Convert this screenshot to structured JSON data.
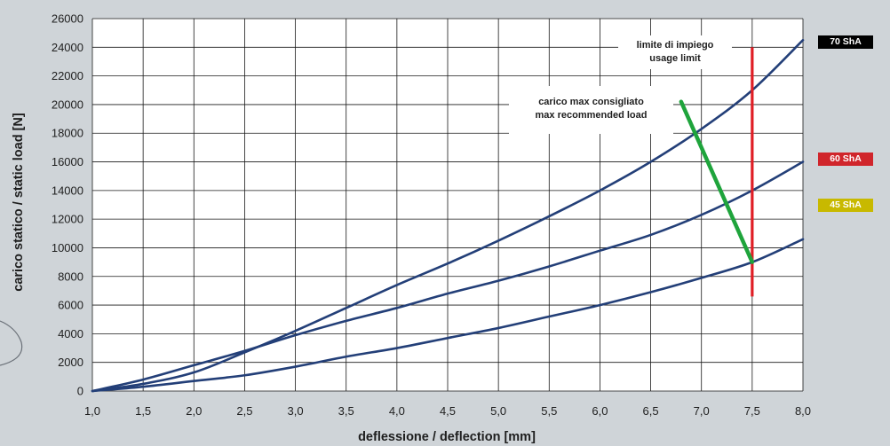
{
  "chart_data": {
    "type": "line",
    "xlabel": "deflessione / deflection [mm]",
    "ylabel": "carico statico / static load [N]",
    "xlim": [
      1.0,
      8.0
    ],
    "ylim": [
      0,
      26000
    ],
    "x_ticks": [
      "1,0",
      "1,5",
      "2,0",
      "2,5",
      "3,0",
      "3,5",
      "4,0",
      "4,5",
      "5,0",
      "5,5",
      "6,0",
      "6,5",
      "7,0",
      "7,5",
      "8,0"
    ],
    "y_ticks": [
      "0",
      "2000",
      "4000",
      "6000",
      "8000",
      "10000",
      "12000",
      "14000",
      "16000",
      "18000",
      "20000",
      "22000",
      "24000",
      "26000"
    ],
    "grid": true,
    "series": [
      {
        "name": "70 ShA",
        "color": "#233f78",
        "x": [
          1.0,
          1.5,
          2.0,
          2.5,
          3.0,
          3.5,
          4.0,
          4.5,
          5.0,
          5.5,
          6.0,
          6.5,
          7.0,
          7.5,
          8.0
        ],
        "y": [
          0,
          500,
          1300,
          2700,
          4200,
          5800,
          7400,
          8900,
          10500,
          12200,
          14000,
          16000,
          18300,
          21000,
          24500
        ]
      },
      {
        "name": "60 ShA",
        "color": "#233f78",
        "x": [
          1.0,
          1.5,
          2.0,
          2.5,
          3.0,
          3.5,
          4.0,
          4.5,
          5.0,
          5.5,
          6.0,
          6.5,
          7.0,
          7.5,
          8.0
        ],
        "y": [
          0,
          800,
          1800,
          2800,
          3900,
          4900,
          5800,
          6800,
          7700,
          8700,
          9800,
          10900,
          12300,
          14000,
          16000
        ]
      },
      {
        "name": "45 ShA",
        "color": "#233f78",
        "x": [
          1.0,
          1.5,
          2.0,
          2.5,
          3.0,
          3.5,
          4.0,
          4.5,
          5.0,
          5.5,
          6.0,
          6.5,
          7.0,
          7.5,
          8.0
        ],
        "y": [
          0,
          300,
          700,
          1100,
          1700,
          2400,
          3000,
          3700,
          4400,
          5200,
          6000,
          6900,
          7900,
          9000,
          10600
        ]
      }
    ],
    "legend": [
      {
        "label": "70 ShA",
        "color": "#000000"
      },
      {
        "label": "60 ShA",
        "color": "#d0252b"
      },
      {
        "label": "45 ShA",
        "color": "#c8b900"
      }
    ],
    "annotations": [
      {
        "id": "usage-limit",
        "lines": [
          "limite di impiego",
          "usage limit"
        ],
        "color": "#e01e25",
        "x": 7.5,
        "y_range": [
          6600,
          24000
        ]
      },
      {
        "id": "max-recommended",
        "lines": [
          "carico max consigliato",
          "max recommended load"
        ],
        "color": "#1fa43c",
        "from": [
          6.8,
          20200
        ],
        "to": [
          7.5,
          9000
        ]
      }
    ]
  }
}
